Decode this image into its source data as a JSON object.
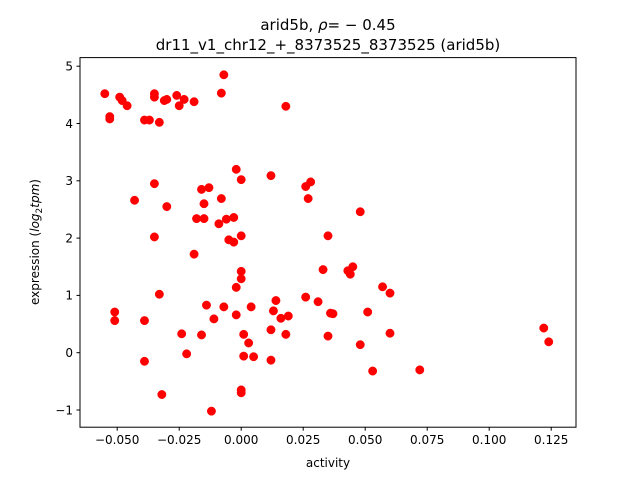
{
  "chart_data": {
    "type": "scatter",
    "title_line1_prefix": "arid5b, ",
    "title_line1_rho": "ρ",
    "title_line1_suffix": "= − 0.45",
    "title_line2": "dr11_v1_chr12_+_8373525_8373525 (arid5b)",
    "xlabel": "activity",
    "ylabel_prefix": "expression (",
    "ylabel_log": "log",
    "ylabel_sub": "2",
    "ylabel_tpm": "tpm",
    "ylabel_suffix": ")",
    "xlim": [
      -0.065,
      0.135
    ],
    "ylim": [
      -1.3,
      5.15
    ],
    "xticks": [
      -0.05,
      -0.025,
      0.0,
      0.025,
      0.05,
      0.075,
      0.1,
      0.125
    ],
    "xtick_labels": [
      "−0.050",
      "−0.025",
      "0.000",
      "0.025",
      "0.050",
      "0.075",
      "0.100",
      "0.125"
    ],
    "yticks": [
      -1,
      0,
      1,
      2,
      3,
      4,
      5
    ],
    "ytick_labels": [
      "−1",
      "0",
      "1",
      "2",
      "3",
      "4",
      "5"
    ],
    "grid": false,
    "marker_color": "#ff0000",
    "points": [
      [
        -0.055,
        4.52
      ],
      [
        -0.049,
        4.46
      ],
      [
        -0.048,
        4.4
      ],
      [
        -0.046,
        4.31
      ],
      [
        -0.053,
        4.12
      ],
      [
        -0.053,
        4.08
      ],
      [
        -0.035,
        4.52
      ],
      [
        -0.035,
        4.46
      ],
      [
        -0.031,
        4.4
      ],
      [
        -0.03,
        4.42
      ],
      [
        -0.026,
        4.49
      ],
      [
        -0.025,
        4.31
      ],
      [
        -0.023,
        4.42
      ],
      [
        -0.019,
        4.38
      ],
      [
        -0.008,
        4.53
      ],
      [
        -0.007,
        4.85
      ],
      [
        0.018,
        4.3
      ],
      [
        -0.039,
        4.06
      ],
      [
        -0.037,
        4.06
      ],
      [
        -0.033,
        4.02
      ],
      [
        -0.002,
        3.2
      ],
      [
        0.0,
        3.02
      ],
      [
        0.012,
        3.09
      ],
      [
        0.026,
        2.9
      ],
      [
        0.028,
        2.98
      ],
      [
        0.027,
        2.69
      ],
      [
        -0.035,
        2.95
      ],
      [
        -0.016,
        2.85
      ],
      [
        -0.013,
        2.88
      ],
      [
        -0.043,
        2.66
      ],
      [
        -0.008,
        2.69
      ],
      [
        -0.03,
        2.55
      ],
      [
        -0.015,
        2.6
      ],
      [
        -0.018,
        2.34
      ],
      [
        -0.015,
        2.34
      ],
      [
        -0.006,
        2.33
      ],
      [
        -0.003,
        2.36
      ],
      [
        -0.009,
        2.25
      ],
      [
        -0.035,
        2.02
      ],
      [
        -0.005,
        1.97
      ],
      [
        -0.003,
        1.93
      ],
      [
        0.0,
        2.04
      ],
      [
        0.048,
        2.46
      ],
      [
        0.035,
        2.04
      ],
      [
        -0.019,
        1.72
      ],
      [
        0.0,
        1.42
      ],
      [
        0.0,
        1.29
      ],
      [
        0.033,
        1.45
      ],
      [
        0.043,
        1.43
      ],
      [
        0.044,
        1.37
      ],
      [
        0.045,
        1.5
      ],
      [
        0.057,
        1.15
      ],
      [
        0.06,
        1.04
      ],
      [
        -0.002,
        1.14
      ],
      [
        -0.033,
        1.02
      ],
      [
        0.014,
        0.91
      ],
      [
        0.026,
        0.97
      ],
      [
        0.031,
        0.89
      ],
      [
        -0.014,
        0.83
      ],
      [
        -0.007,
        0.8
      ],
      [
        0.004,
        0.8
      ],
      [
        -0.051,
        0.71
      ],
      [
        -0.051,
        0.56
      ],
      [
        -0.039,
        0.56
      ],
      [
        0.013,
        0.73
      ],
      [
        0.016,
        0.6
      ],
      [
        0.019,
        0.64
      ],
      [
        0.036,
        0.69
      ],
      [
        0.037,
        0.68
      ],
      [
        0.051,
        0.71
      ],
      [
        -0.011,
        0.59
      ],
      [
        -0.002,
        0.66
      ],
      [
        0.012,
        0.4
      ],
      [
        0.018,
        0.32
      ],
      [
        0.035,
        0.29
      ],
      [
        0.06,
        0.34
      ],
      [
        0.122,
        0.43
      ],
      [
        0.124,
        0.19
      ],
      [
        -0.024,
        0.33
      ],
      [
        -0.016,
        0.31
      ],
      [
        0.001,
        0.32
      ],
      [
        0.003,
        0.17
      ],
      [
        0.048,
        0.14
      ],
      [
        -0.022,
        -0.02
      ],
      [
        0.001,
        -0.06
      ],
      [
        0.005,
        -0.07
      ],
      [
        0.012,
        -0.13
      ],
      [
        -0.039,
        -0.15
      ],
      [
        0.053,
        -0.32
      ],
      [
        0.072,
        -0.3
      ],
      [
        0.0,
        -0.65
      ],
      [
        0.0,
        -0.7
      ],
      [
        -0.032,
        -0.73
      ],
      [
        -0.012,
        -1.02
      ]
    ]
  }
}
